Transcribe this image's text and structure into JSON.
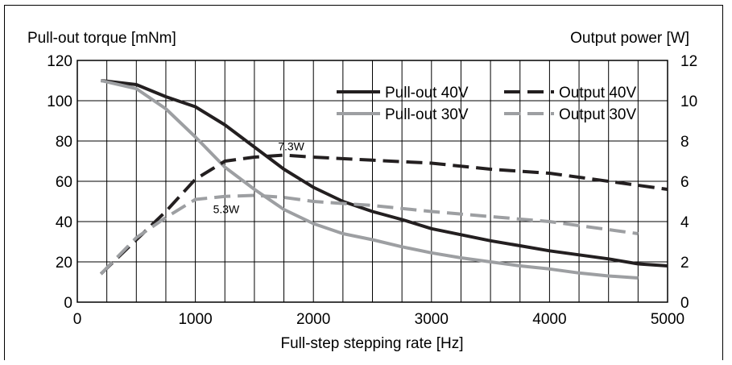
{
  "chart_data": {
    "type": "line",
    "ylabel_left": "Pull-out torque [mNm]",
    "ylabel_right": "Output power [W]",
    "xlabel": "Full-step stepping rate [Hz]",
    "xlim": [
      0,
      5000
    ],
    "ylim_left": [
      0,
      120
    ],
    "ylim_right": [
      0,
      12
    ],
    "x_ticks": [
      0,
      1000,
      2000,
      3000,
      4000,
      5000
    ],
    "y_ticks_left": [
      0,
      20,
      40,
      60,
      80,
      100,
      120
    ],
    "y_ticks_right": [
      0,
      2,
      4,
      6,
      8,
      10,
      12
    ],
    "grid": true,
    "legend_position": "top-right",
    "series": [
      {
        "name": "Pull-out 40V",
        "axis": "left",
        "style": "solid",
        "color": "#231f20",
        "x": [
          200,
          500,
          750,
          1000,
          1250,
          1500,
          1750,
          2000,
          2250,
          2500,
          2750,
          3000,
          3250,
          3500,
          3750,
          4000,
          4250,
          4500,
          4750,
          5000
        ],
        "y": [
          110,
          108,
          102,
          97,
          88,
          77,
          66,
          57,
          50,
          45,
          41,
          36.5,
          33.5,
          30.5,
          28,
          25.5,
          23.5,
          21.5,
          19,
          18
        ]
      },
      {
        "name": "Pull-out 30V",
        "axis": "left",
        "style": "solid",
        "color": "#9d9fa2",
        "x": [
          200,
          500,
          750,
          1000,
          1250,
          1500,
          1750,
          2000,
          2250,
          2500,
          2750,
          3000,
          3250,
          3500,
          3750,
          4000,
          4250,
          4500,
          4750
        ],
        "y": [
          110,
          106,
          96,
          82,
          67,
          56,
          46,
          39,
          34,
          31,
          27.5,
          24.5,
          22,
          20,
          18,
          16.5,
          14.5,
          13,
          12
        ]
      },
      {
        "name": "Output 40V",
        "axis": "right",
        "style": "dashed",
        "color": "#231f20",
        "x": [
          200,
          500,
          750,
          1000,
          1250,
          1500,
          1750,
          2000,
          2500,
          3000,
          3500,
          4000,
          4500,
          5000
        ],
        "y": [
          1.4,
          3.1,
          4.5,
          6.1,
          7.0,
          7.2,
          7.3,
          7.2,
          7.05,
          6.9,
          6.6,
          6.4,
          6.0,
          5.6
        ]
      },
      {
        "name": "Output 30V",
        "axis": "right",
        "style": "dashed",
        "color": "#9d9fa2",
        "x": [
          200,
          500,
          750,
          1000,
          1250,
          1500,
          1750,
          2000,
          2500,
          3000,
          3500,
          4000,
          4500,
          4750
        ],
        "y": [
          1.4,
          3.2,
          4.2,
          5.1,
          5.25,
          5.3,
          5.2,
          5.0,
          4.8,
          4.5,
          4.25,
          4.0,
          3.6,
          3.4
        ]
      }
    ],
    "annotations": [
      {
        "text": "7.3W",
        "x": 1700,
        "y_right": 7.3
      },
      {
        "text": "5.3W",
        "x": 1150,
        "y_right": 5.3
      }
    ]
  }
}
